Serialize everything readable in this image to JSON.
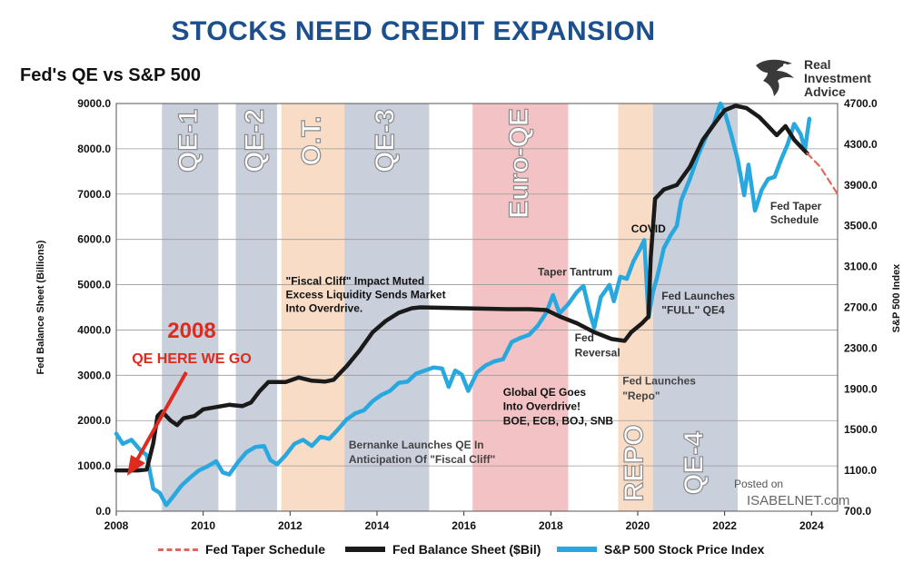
{
  "header": {
    "headline": "STOCKS NEED CREDIT EXPANSION",
    "subtitle": "Fed's QE vs S&P 500",
    "brand_line1": "Real",
    "brand_line2": "Investment",
    "brand_line3": "Advice",
    "posted_on": "Posted on",
    "isabelnet": "ISABELNET.com"
  },
  "colors": {
    "qe_band": "#c9cfdb",
    "ot_band": "#f8dcc6",
    "euro_band": "#f3c2c4",
    "repo_band": "#f8dcc6",
    "fed_line": "#1a1a1a",
    "spx_line": "#29a8e0",
    "taper_line": "#e0685a",
    "headline": "#1d4f8c",
    "annotation_red": "#e02a1e"
  },
  "chart_data": {
    "type": "line",
    "title": "Fed's QE vs S&P 500",
    "xlim": [
      2008,
      2024.6
    ],
    "x_ticks": [
      2008,
      2010,
      2012,
      2014,
      2016,
      2018,
      2020,
      2022,
      2024
    ],
    "x_tick_labels": [
      "2008",
      "2010",
      "2012",
      "2014",
      "2016",
      "2018",
      "2020",
      "2022",
      "2024"
    ],
    "ylabel_left": "Fed Balance Sheet (Billions)",
    "ylim_left": [
      0,
      9000
    ],
    "y_left_ticks": [
      0,
      1000,
      2000,
      3000,
      4000,
      5000,
      6000,
      7000,
      8000,
      9000
    ],
    "y_left_tick_labels": [
      "0.0",
      "1000.0",
      "2000.0",
      "3000.0",
      "4000.0",
      "5000.0",
      "6000.0",
      "7000.0",
      "8000.0",
      "9000.0"
    ],
    "ylabel_right": "S&P 500 Index",
    "ylim_right": [
      700,
      4700
    ],
    "y_right_ticks": [
      700,
      1100,
      1500,
      1900,
      2300,
      2700,
      3100,
      3500,
      3900,
      4300,
      4700
    ],
    "y_right_tick_labels": [
      "700.0",
      "1100.0",
      "1500.0",
      "1900.0",
      "2300.0",
      "2700.0",
      "3100.0",
      "3500.0",
      "3900.0",
      "4300.0",
      "4700.0"
    ],
    "grid": true,
    "legend_position": "bottom",
    "bands": [
      {
        "label": "QE-1",
        "start": 2009.05,
        "end": 2010.35,
        "kind": "qe"
      },
      {
        "label": "QE-2",
        "start": 2010.75,
        "end": 2011.7,
        "kind": "qe"
      },
      {
        "label": "O.T.",
        "start": 2011.8,
        "end": 2013.25,
        "kind": "ot"
      },
      {
        "label": "QE-3",
        "start": 2013.25,
        "end": 2015.2,
        "kind": "qe"
      },
      {
        "label": "Euro-QE",
        "start": 2016.2,
        "end": 2018.4,
        "kind": "euro"
      },
      {
        "label": "REPO",
        "start": 2019.55,
        "end": 2020.35,
        "kind": "repo"
      },
      {
        "label": "QE-4",
        "start": 2020.35,
        "end": 2022.3,
        "kind": "qe"
      }
    ],
    "series": [
      {
        "name": "Fed Taper Schedule",
        "axis": "left",
        "style": "dashed",
        "points": [
          [
            2023.9,
            7900
          ],
          [
            2024.2,
            7600
          ],
          [
            2024.6,
            7000
          ]
        ]
      },
      {
        "name": "Fed Balance Sheet ($Bil)",
        "axis": "left",
        "style": "solid",
        "points": [
          [
            2008.0,
            900
          ],
          [
            2008.5,
            900
          ],
          [
            2008.7,
            920
          ],
          [
            2008.85,
            1500
          ],
          [
            2008.95,
            2100
          ],
          [
            2009.05,
            2200
          ],
          [
            2009.25,
            2000
          ],
          [
            2009.4,
            1900
          ],
          [
            2009.55,
            2050
          ],
          [
            2009.8,
            2100
          ],
          [
            2010.0,
            2250
          ],
          [
            2010.3,
            2300
          ],
          [
            2010.6,
            2350
          ],
          [
            2010.9,
            2320
          ],
          [
            2011.1,
            2400
          ],
          [
            2011.3,
            2650
          ],
          [
            2011.5,
            2850
          ],
          [
            2011.7,
            2850
          ],
          [
            2011.9,
            2850
          ],
          [
            2012.2,
            2950
          ],
          [
            2012.5,
            2880
          ],
          [
            2012.8,
            2860
          ],
          [
            2013.0,
            2900
          ],
          [
            2013.3,
            3200
          ],
          [
            2013.6,
            3550
          ],
          [
            2013.9,
            3950
          ],
          [
            2014.2,
            4200
          ],
          [
            2014.5,
            4380
          ],
          [
            2014.8,
            4480
          ],
          [
            2015.0,
            4500
          ],
          [
            2015.5,
            4490
          ],
          [
            2016.0,
            4480
          ],
          [
            2016.5,
            4470
          ],
          [
            2017.0,
            4460
          ],
          [
            2017.5,
            4460
          ],
          [
            2017.9,
            4440
          ],
          [
            2018.2,
            4300
          ],
          [
            2018.6,
            4150
          ],
          [
            2019.0,
            3950
          ],
          [
            2019.4,
            3800
          ],
          [
            2019.7,
            3760
          ],
          [
            2019.85,
            3950
          ],
          [
            2020.1,
            4150
          ],
          [
            2020.25,
            4300
          ],
          [
            2020.3,
            5600
          ],
          [
            2020.4,
            6900
          ],
          [
            2020.6,
            7100
          ],
          [
            2020.9,
            7200
          ],
          [
            2021.2,
            7600
          ],
          [
            2021.5,
            8200
          ],
          [
            2021.8,
            8600
          ],
          [
            2022.0,
            8850
          ],
          [
            2022.25,
            8950
          ],
          [
            2022.5,
            8900
          ],
          [
            2022.8,
            8700
          ],
          [
            2023.0,
            8500
          ],
          [
            2023.2,
            8300
          ],
          [
            2023.4,
            8500
          ],
          [
            2023.6,
            8200
          ],
          [
            2023.8,
            8000
          ],
          [
            2023.9,
            7900
          ]
        ]
      },
      {
        "name": "S&P 500 Stock Price Index",
        "axis": "right",
        "style": "solid",
        "points": [
          [
            2008.0,
            1460
          ],
          [
            2008.15,
            1360
          ],
          [
            2008.35,
            1400
          ],
          [
            2008.55,
            1300
          ],
          [
            2008.7,
            1250
          ],
          [
            2008.85,
            920
          ],
          [
            2009.0,
            880
          ],
          [
            2009.15,
            760
          ],
          [
            2009.3,
            840
          ],
          [
            2009.5,
            950
          ],
          [
            2009.7,
            1030
          ],
          [
            2009.9,
            1100
          ],
          [
            2010.1,
            1140
          ],
          [
            2010.3,
            1190
          ],
          [
            2010.45,
            1080
          ],
          [
            2010.6,
            1060
          ],
          [
            2010.8,
            1180
          ],
          [
            2011.0,
            1280
          ],
          [
            2011.2,
            1330
          ],
          [
            2011.4,
            1340
          ],
          [
            2011.55,
            1200
          ],
          [
            2011.7,
            1160
          ],
          [
            2011.9,
            1250
          ],
          [
            2012.1,
            1360
          ],
          [
            2012.3,
            1400
          ],
          [
            2012.5,
            1340
          ],
          [
            2012.7,
            1430
          ],
          [
            2012.9,
            1410
          ],
          [
            2013.1,
            1500
          ],
          [
            2013.3,
            1600
          ],
          [
            2013.5,
            1660
          ],
          [
            2013.7,
            1690
          ],
          [
            2013.9,
            1780
          ],
          [
            2014.1,
            1840
          ],
          [
            2014.3,
            1880
          ],
          [
            2014.5,
            1960
          ],
          [
            2014.7,
            1970
          ],
          [
            2014.9,
            2050
          ],
          [
            2015.1,
            2080
          ],
          [
            2015.3,
            2110
          ],
          [
            2015.5,
            2100
          ],
          [
            2015.65,
            1920
          ],
          [
            2015.8,
            2080
          ],
          [
            2015.95,
            2040
          ],
          [
            2016.1,
            1880
          ],
          [
            2016.3,
            2060
          ],
          [
            2016.5,
            2130
          ],
          [
            2016.7,
            2170
          ],
          [
            2016.9,
            2190
          ],
          [
            2017.1,
            2360
          ],
          [
            2017.3,
            2400
          ],
          [
            2017.5,
            2430
          ],
          [
            2017.7,
            2520
          ],
          [
            2017.9,
            2650
          ],
          [
            2018.05,
            2820
          ],
          [
            2018.2,
            2640
          ],
          [
            2018.4,
            2730
          ],
          [
            2018.6,
            2850
          ],
          [
            2018.75,
            2910
          ],
          [
            2018.9,
            2640
          ],
          [
            2019.0,
            2500
          ],
          [
            2019.15,
            2800
          ],
          [
            2019.35,
            2920
          ],
          [
            2019.45,
            2760
          ],
          [
            2019.6,
            3000
          ],
          [
            2019.75,
            2980
          ],
          [
            2019.9,
            3150
          ],
          [
            2020.05,
            3270
          ],
          [
            2020.15,
            3360
          ],
          [
            2020.25,
            2600
          ],
          [
            2020.35,
            2850
          ],
          [
            2020.45,
            3000
          ],
          [
            2020.6,
            3280
          ],
          [
            2020.75,
            3400
          ],
          [
            2020.9,
            3500
          ],
          [
            2021.0,
            3750
          ],
          [
            2021.2,
            3960
          ],
          [
            2021.4,
            4200
          ],
          [
            2021.6,
            4400
          ],
          [
            2021.75,
            4500
          ],
          [
            2021.9,
            4700
          ],
          [
            2022.0,
            4620
          ],
          [
            2022.15,
            4400
          ],
          [
            2022.3,
            4150
          ],
          [
            2022.45,
            3800
          ],
          [
            2022.55,
            4100
          ],
          [
            2022.7,
            3650
          ],
          [
            2022.85,
            3850
          ],
          [
            2023.0,
            3960
          ],
          [
            2023.15,
            3980
          ],
          [
            2023.3,
            4150
          ],
          [
            2023.45,
            4300
          ],
          [
            2023.6,
            4500
          ],
          [
            2023.75,
            4400
          ],
          [
            2023.85,
            4250
          ],
          [
            2023.95,
            4550
          ]
        ]
      }
    ],
    "annotations": [
      {
        "text": "\"Fiscal Cliff\" Impact Muted",
        "x": 2011.9,
        "y": 5000,
        "color": "#111"
      },
      {
        "text": "Excess Liquidity Sends Market",
        "x": 2011.9,
        "y": 4700,
        "color": "#111"
      },
      {
        "text": "Into Overdrive.",
        "x": 2011.9,
        "y": 4400,
        "color": "#111"
      },
      {
        "text": "Taper Tantrum",
        "x": 2017.7,
        "y": 5200,
        "color": "#333"
      },
      {
        "text": "COVID",
        "x": 2019.85,
        "y": 6150,
        "color": "#111"
      },
      {
        "text": "Fed Launches",
        "x": 2020.55,
        "y": 4670,
        "color": "#333"
      },
      {
        "text": "\"FULL\" QE4",
        "x": 2020.55,
        "y": 4360,
        "color": "#333"
      },
      {
        "text": "Fed",
        "x": 2018.55,
        "y": 3750,
        "color": "#333"
      },
      {
        "text": "Reversal",
        "x": 2018.55,
        "y": 3420,
        "color": "#333"
      },
      {
        "text": "Fed Launches",
        "x": 2019.65,
        "y": 2800,
        "color": "#444"
      },
      {
        "text": "\"Repo\"",
        "x": 2019.65,
        "y": 2470,
        "color": "#444"
      },
      {
        "text": "Global QE Goes",
        "x": 2016.9,
        "y": 2550,
        "color": "#111"
      },
      {
        "text": "Into Overdrive!",
        "x": 2016.9,
        "y": 2230,
        "color": "#111"
      },
      {
        "text": "BOE, ECB, BOJ, SNB",
        "x": 2016.9,
        "y": 1910,
        "color": "#111"
      },
      {
        "text": "Bernanke Launches QE In",
        "x": 2013.35,
        "y": 1380,
        "color": "#444"
      },
      {
        "text": "Anticipation Of \"Fiscal Cliff\"",
        "x": 2013.35,
        "y": 1060,
        "color": "#444"
      },
      {
        "text": "Fed Taper",
        "x": 2023.05,
        "y": 6650,
        "color": "#333"
      },
      {
        "text": "Schedule",
        "x": 2023.05,
        "y": 6350,
        "color": "#333"
      }
    ],
    "callout": {
      "year": "2008",
      "text": "QE HERE WE GO"
    }
  }
}
